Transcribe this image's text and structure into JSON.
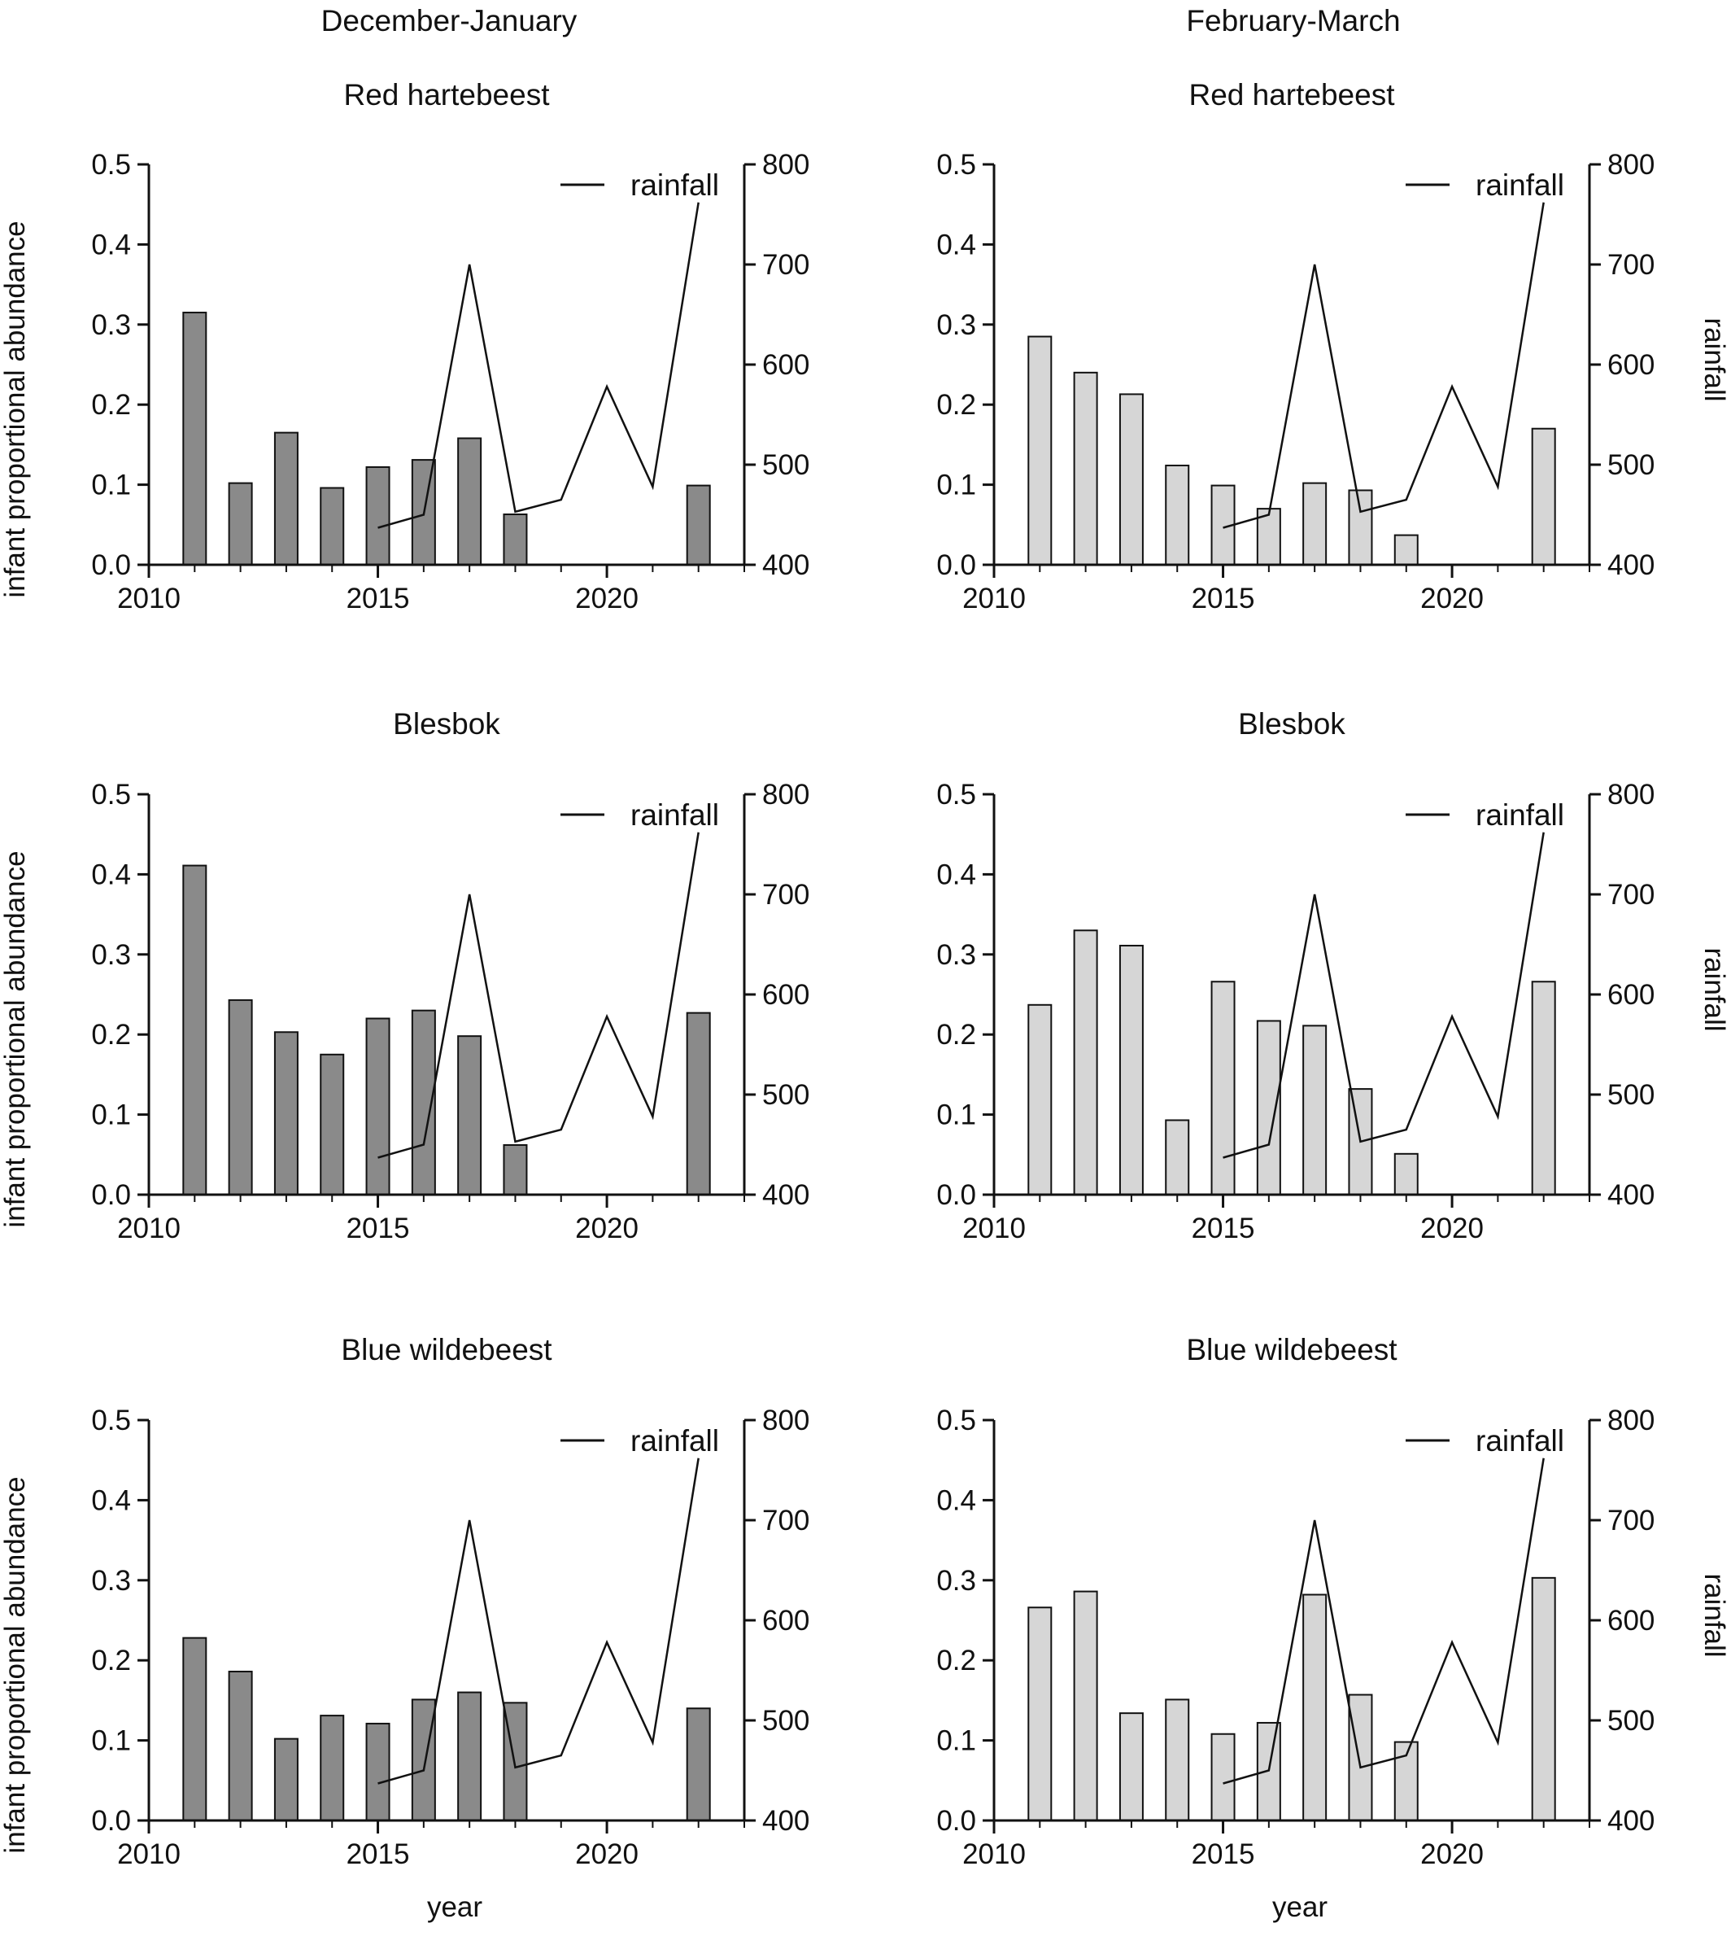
{
  "figure": {
    "column_titles": [
      "December-January",
      "February-March"
    ],
    "ylabel_left": "infant proportional abundance",
    "ylabel_right": "rainfall",
    "xlabel": "year",
    "legend_label": "rainfall"
  },
  "style": {
    "bar_fill_dec_jan": "#8a8a8a",
    "bar_fill_feb_mar": "#d6d6d6",
    "bar_stroke": "#111111",
    "line_color": "#111111"
  },
  "chart_data": [
    {
      "type": "bar",
      "panel": "December-January / Red hartebeest",
      "column": "December-January",
      "title": "Red hartebeest",
      "xlabel": "",
      "ylabel": "infant proportional abundance",
      "ylabel_right": "",
      "x": [
        2011,
        2012,
        2013,
        2014,
        2015,
        2016,
        2017,
        2018,
        2022
      ],
      "values": [
        0.315,
        0.102,
        0.165,
        0.096,
        0.122,
        0.131,
        0.158,
        0.063,
        0.099
      ],
      "xlim": [
        2010,
        2023
      ],
      "xticks": [
        2010,
        2015,
        2020
      ],
      "ylim": [
        0,
        0.5
      ],
      "yticks": [
        "0.0",
        "0.1",
        "0.2",
        "0.3",
        "0.4",
        "0.5"
      ],
      "y2lim": [
        400,
        800
      ],
      "y2ticks": [
        "400",
        "500",
        "600",
        "700",
        "800"
      ],
      "rainfall": {
        "name": "rainfall",
        "x": [
          2015,
          2016,
          2017,
          2018,
          2019,
          2020,
          2021,
          2022
        ],
        "values": [
          437,
          450,
          700,
          453,
          465,
          578,
          478,
          762
        ]
      },
      "legend": "top-right"
    },
    {
      "type": "bar",
      "panel": "February-March / Red hartebeest",
      "column": "February-March",
      "title": "Red hartebeest",
      "xlabel": "",
      "ylabel": "",
      "ylabel_right": "rainfall",
      "x": [
        2011,
        2012,
        2013,
        2014,
        2015,
        2016,
        2017,
        2018,
        2019,
        2022
      ],
      "values": [
        0.285,
        0.24,
        0.213,
        0.124,
        0.099,
        0.07,
        0.102,
        0.093,
        0.037,
        0.17
      ],
      "xlim": [
        2010,
        2023
      ],
      "xticks": [
        2010,
        2015,
        2020
      ],
      "ylim": [
        0,
        0.5
      ],
      "yticks": [
        "0.0",
        "0.1",
        "0.2",
        "0.3",
        "0.4",
        "0.5"
      ],
      "y2lim": [
        400,
        800
      ],
      "y2ticks": [
        "400",
        "500",
        "600",
        "700",
        "800"
      ],
      "rainfall": {
        "name": "rainfall",
        "x": [
          2015,
          2016,
          2017,
          2018,
          2019,
          2020,
          2021,
          2022
        ],
        "values": [
          437,
          450,
          700,
          453,
          465,
          578,
          478,
          762
        ]
      },
      "legend": "top-right"
    },
    {
      "type": "bar",
      "panel": "December-January / Blesbok",
      "column": "December-January",
      "title": "Blesbok",
      "xlabel": "",
      "ylabel": "infant proportional abundance",
      "ylabel_right": "",
      "x": [
        2011,
        2012,
        2013,
        2014,
        2015,
        2016,
        2017,
        2018,
        2022
      ],
      "values": [
        0.411,
        0.243,
        0.203,
        0.175,
        0.22,
        0.23,
        0.198,
        0.062,
        0.227
      ],
      "xlim": [
        2010,
        2023
      ],
      "xticks": [
        2010,
        2015,
        2020
      ],
      "ylim": [
        0,
        0.5
      ],
      "yticks": [
        "0.0",
        "0.1",
        "0.2",
        "0.3",
        "0.4",
        "0.5"
      ],
      "y2lim": [
        400,
        800
      ],
      "y2ticks": [
        "400",
        "500",
        "600",
        "700",
        "800"
      ],
      "rainfall": {
        "name": "rainfall",
        "x": [
          2015,
          2016,
          2017,
          2018,
          2019,
          2020,
          2021,
          2022
        ],
        "values": [
          437,
          450,
          700,
          453,
          465,
          578,
          478,
          762
        ]
      },
      "legend": "top-right"
    },
    {
      "type": "bar",
      "panel": "February-March / Blesbok",
      "column": "February-March",
      "title": "Blesbok",
      "xlabel": "",
      "ylabel": "",
      "ylabel_right": "rainfall",
      "x": [
        2011,
        2012,
        2013,
        2014,
        2015,
        2016,
        2017,
        2018,
        2019,
        2022
      ],
      "values": [
        0.237,
        0.33,
        0.311,
        0.093,
        0.266,
        0.217,
        0.211,
        0.132,
        0.051,
        0.266
      ],
      "xlim": [
        2010,
        2023
      ],
      "xticks": [
        2010,
        2015,
        2020
      ],
      "ylim": [
        0,
        0.5
      ],
      "yticks": [
        "0.0",
        "0.1",
        "0.2",
        "0.3",
        "0.4",
        "0.5"
      ],
      "y2lim": [
        400,
        800
      ],
      "y2ticks": [
        "400",
        "500",
        "600",
        "700",
        "800"
      ],
      "rainfall": {
        "name": "rainfall",
        "x": [
          2015,
          2016,
          2017,
          2018,
          2019,
          2020,
          2021,
          2022
        ],
        "values": [
          437,
          450,
          700,
          453,
          465,
          578,
          478,
          762
        ]
      },
      "legend": "top-right"
    },
    {
      "type": "bar",
      "panel": "December-January / Blue wildebeest",
      "column": "December-January",
      "title": "Blue wildebeest",
      "xlabel": "year",
      "ylabel": "infant proportional abundance",
      "ylabel_right": "",
      "x": [
        2011,
        2012,
        2013,
        2014,
        2015,
        2016,
        2017,
        2018,
        2022
      ],
      "values": [
        0.228,
        0.186,
        0.102,
        0.131,
        0.121,
        0.151,
        0.16,
        0.147,
        0.14
      ],
      "xlim": [
        2010,
        2023
      ],
      "xticks": [
        2010,
        2015,
        2020
      ],
      "ylim": [
        0,
        0.5
      ],
      "yticks": [
        "0.0",
        "0.1",
        "0.2",
        "0.3",
        "0.4",
        "0.5"
      ],
      "y2lim": [
        400,
        800
      ],
      "y2ticks": [
        "400",
        "500",
        "600",
        "700",
        "800"
      ],
      "rainfall": {
        "name": "rainfall",
        "x": [
          2015,
          2016,
          2017,
          2018,
          2019,
          2020,
          2021,
          2022
        ],
        "values": [
          437,
          450,
          700,
          453,
          465,
          578,
          478,
          762
        ]
      },
      "legend": "top-right"
    },
    {
      "type": "bar",
      "panel": "February-March / Blue wildebeest",
      "column": "February-March",
      "title": "Blue wildebeest",
      "xlabel": "year",
      "ylabel": "",
      "ylabel_right": "rainfall",
      "x": [
        2011,
        2012,
        2013,
        2014,
        2015,
        2016,
        2017,
        2018,
        2019,
        2022
      ],
      "values": [
        0.266,
        0.286,
        0.134,
        0.151,
        0.108,
        0.122,
        0.282,
        0.157,
        0.098,
        0.303
      ],
      "xlim": [
        2010,
        2023
      ],
      "xticks": [
        2010,
        2015,
        2020
      ],
      "ylim": [
        0,
        0.5
      ],
      "yticks": [
        "0.0",
        "0.1",
        "0.2",
        "0.3",
        "0.4",
        "0.5"
      ],
      "y2lim": [
        400,
        800
      ],
      "y2ticks": [
        "400",
        "500",
        "600",
        "700",
        "800"
      ],
      "rainfall": {
        "name": "rainfall",
        "x": [
          2015,
          2016,
          2017,
          2018,
          2019,
          2020,
          2021,
          2022
        ],
        "values": [
          437,
          450,
          700,
          453,
          465,
          578,
          478,
          762
        ]
      },
      "legend": "top-right"
    }
  ]
}
